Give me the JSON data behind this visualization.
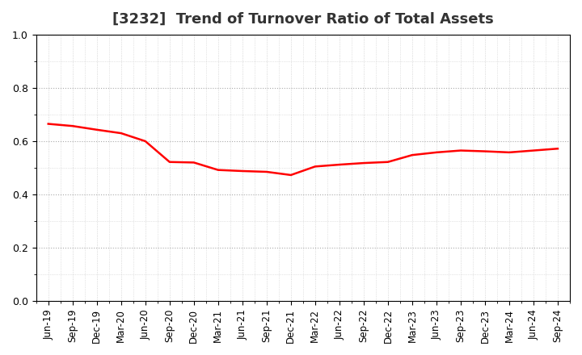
{
  "title": "[3232]  Trend of Turnover Ratio of Total Assets",
  "x_labels": [
    "Jun-19",
    "Sep-19",
    "Dec-19",
    "Mar-20",
    "Jun-20",
    "Sep-20",
    "Dec-20",
    "Mar-21",
    "Jun-21",
    "Sep-21",
    "Dec-21",
    "Mar-22",
    "Jun-22",
    "Sep-22",
    "Dec-22",
    "Mar-23",
    "Jun-23",
    "Sep-23",
    "Dec-23",
    "Mar-24",
    "Jun-24",
    "Sep-24"
  ],
  "y_values": [
    0.665,
    0.657,
    0.643,
    0.63,
    0.6,
    0.522,
    0.52,
    0.492,
    0.488,
    0.485,
    0.473,
    0.505,
    0.512,
    0.518,
    0.522,
    0.548,
    0.558,
    0.565,
    0.562,
    0.558,
    0.565,
    0.572
  ],
  "line_color": "#ff0000",
  "line_width": 1.8,
  "ylim": [
    0.0,
    1.0
  ],
  "yticks": [
    0.0,
    0.2,
    0.4,
    0.6,
    0.8,
    1.0
  ],
  "background_color": "#ffffff",
  "plot_bg_color": "#ffffff",
  "major_grid_color": "#aaaaaa",
  "minor_grid_color": "#cccccc",
  "title_fontsize": 13,
  "tick_fontsize": 8.5
}
